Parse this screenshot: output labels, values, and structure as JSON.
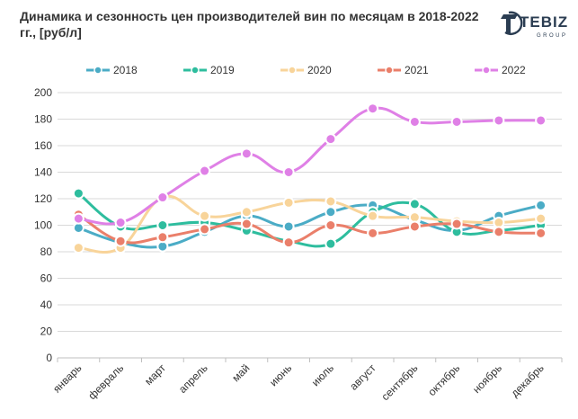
{
  "chart_data": {
    "type": "line",
    "title": "Динамика и сезонность цен производителей вин по месяцам в 2018-2022 гг., [руб/л]",
    "xlabel": "",
    "ylabel": "",
    "categories": [
      "январь",
      "февраль",
      "март",
      "апрель",
      "май",
      "июнь",
      "июль",
      "август",
      "сентябрь",
      "октябрь",
      "ноябрь",
      "декабрь"
    ],
    "ylim": [
      0,
      200
    ],
    "yticks": [
      "0",
      "20",
      "40",
      "60",
      "80",
      "100",
      "120",
      "140",
      "160",
      "180",
      "200"
    ],
    "grid": "horizontal",
    "legend_position": "top",
    "series": [
      {
        "name": "2018",
        "color": "#4BACC6",
        "values": [
          98,
          87,
          84,
          95,
          107,
          99,
          110,
          115,
          104,
          96,
          107,
          115
        ]
      },
      {
        "name": "2019",
        "color": "#2EBD9E",
        "values": [
          124,
          99,
          100,
          102,
          96,
          88,
          86,
          110,
          116,
          95,
          96,
          100
        ]
      },
      {
        "name": "2020",
        "color": "#F8D49A",
        "values": [
          83,
          83,
          121,
          107,
          110,
          117,
          118,
          107,
          106,
          103,
          102,
          105
        ]
      },
      {
        "name": "2021",
        "color": "#EA7F6A",
        "values": [
          108,
          88,
          91,
          97,
          101,
          87,
          100,
          94,
          99,
          101,
          95,
          94
        ]
      },
      {
        "name": "2022",
        "color": "#DF80E6",
        "values": [
          105,
          102,
          121,
          141,
          154,
          140,
          165,
          188,
          178,
          178,
          179,
          179
        ]
      }
    ]
  },
  "logo": {
    "name": "TEBIZ",
    "sub": "GROUP",
    "icon": "tebiz-logo-icon",
    "color": "#2b3d52"
  }
}
